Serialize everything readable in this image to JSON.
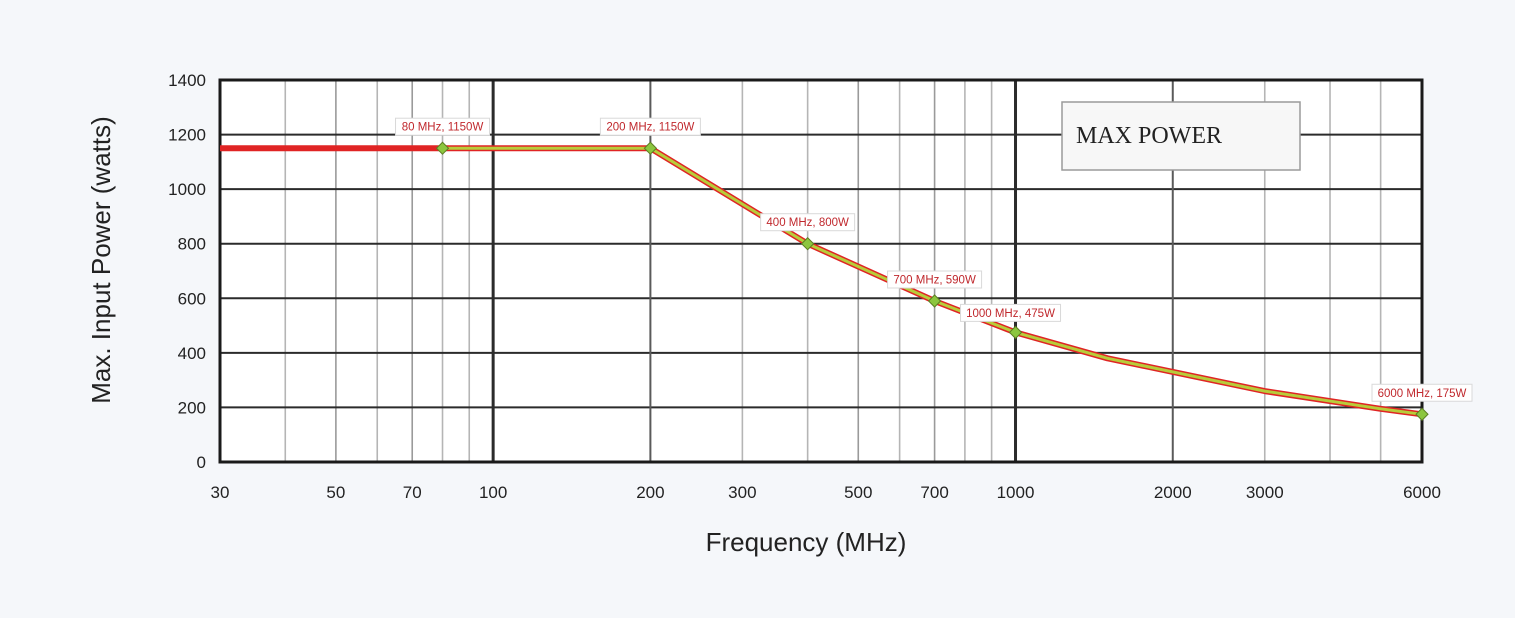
{
  "chart_data": {
    "type": "line",
    "xscale": "log",
    "xlabel": "Frequency (MHz)",
    "ylabel": "Max. Input Power (watts)",
    "xlim": [
      30,
      6000
    ],
    "ylim": [
      0,
      1400
    ],
    "x_ticks": [
      30,
      50,
      70,
      100,
      200,
      300,
      500,
      700,
      1000,
      2000,
      3000,
      6000
    ],
    "y_ticks": [
      0,
      200,
      400,
      600,
      800,
      1000,
      1200,
      1400
    ],
    "grid": true,
    "legend_box": "MAX POWER",
    "legend_placement": "top-right",
    "colors": {
      "baseline": "#e02424",
      "highlight": "#b8cc3a",
      "marker": "#8cc63f",
      "label_text": "#c0282d"
    },
    "series": [
      {
        "values": [
          {
            "x": 30,
            "y": 1150
          },
          {
            "x": 80,
            "y": 1150
          },
          {
            "x": 200,
            "y": 1150
          },
          {
            "x": 400,
            "y": 800
          },
          {
            "x": 700,
            "y": 590
          },
          {
            "x": 1000,
            "y": 475
          },
          {
            "x": 1500,
            "y": 380
          },
          {
            "x": 3000,
            "y": 260
          },
          {
            "x": 5000,
            "y": 195
          },
          {
            "x": 6000,
            "y": 175
          }
        ]
      }
    ],
    "annotations": [
      {
        "x": 80,
        "y": 1150,
        "text": "80 MHz, 1150W"
      },
      {
        "x": 200,
        "y": 1150,
        "text": "200 MHz, 1150W"
      },
      {
        "x": 400,
        "y": 800,
        "text": "400 MHz, 800W"
      },
      {
        "x": 700,
        "y": 590,
        "text": "700 MHz, 590W"
      },
      {
        "x": 1000,
        "y": 475,
        "text": "1000 MHz, 475W"
      },
      {
        "x": 6000,
        "y": 175,
        "text": "6000 MHz, 175W"
      }
    ]
  }
}
